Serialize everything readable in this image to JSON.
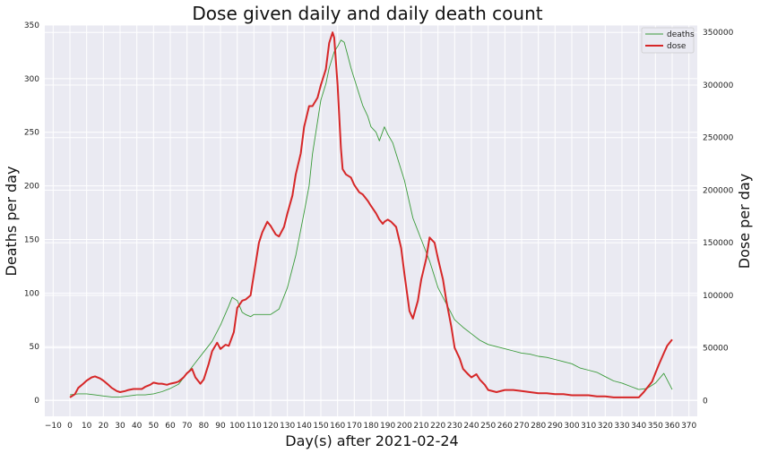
{
  "chart_data": {
    "type": "line",
    "title": "Dose given daily and daily death count",
    "xlabel": "Day(s) after 2021-02-24",
    "ylabel_left": "Deaths per day",
    "ylabel_right": "Dose per day",
    "xlim": [
      -15,
      375
    ],
    "ylim_left": [
      -15,
      350
    ],
    "ylim_right": [
      -15000,
      357000
    ],
    "xticks": [
      -10,
      0,
      10,
      20,
      30,
      40,
      50,
      60,
      70,
      80,
      90,
      100,
      110,
      120,
      130,
      140,
      150,
      160,
      170,
      180,
      190,
      200,
      210,
      220,
      230,
      240,
      250,
      260,
      270,
      280,
      290,
      300,
      310,
      320,
      330,
      340,
      350,
      360,
      370
    ],
    "yticks_left": [
      0,
      50,
      100,
      150,
      200,
      250,
      300,
      350
    ],
    "yticks_right": [
      0,
      50000,
      100000,
      150000,
      200000,
      250000,
      300000,
      350000
    ],
    "grid": true,
    "legend_position": "top-right",
    "colors": {
      "deaths": "#3a9b3a",
      "dose": "#d62728",
      "background": "#eaeaf2",
      "grid": "#ffffff"
    },
    "series": [
      {
        "name": "deaths",
        "axis": "left",
        "x": [
          0,
          5,
          10,
          15,
          20,
          25,
          30,
          35,
          40,
          45,
          50,
          55,
          60,
          65,
          70,
          75,
          80,
          85,
          90,
          95,
          97,
          100,
          103,
          105,
          108,
          110,
          113,
          115,
          118,
          120,
          125,
          130,
          135,
          140,
          143,
          145,
          148,
          150,
          153,
          155,
          158,
          160,
          162,
          164,
          166,
          168,
          170,
          173,
          175,
          178,
          180,
          183,
          185,
          188,
          190,
          193,
          195,
          200,
          205,
          210,
          215,
          220,
          225,
          230,
          235,
          240,
          245,
          250,
          255,
          260,
          265,
          270,
          275,
          280,
          285,
          290,
          295,
          300,
          305,
          310,
          315,
          320,
          325,
          330,
          335,
          340,
          345,
          350,
          355,
          360
        ],
        "values": [
          5,
          6,
          6,
          5,
          4,
          3,
          3,
          4,
          5,
          5,
          6,
          8,
          11,
          15,
          25,
          35,
          45,
          55,
          70,
          88,
          96,
          93,
          82,
          80,
          78,
          80,
          80,
          80,
          80,
          80,
          85,
          105,
          135,
          175,
          200,
          230,
          260,
          280,
          295,
          310,
          325,
          330,
          336,
          334,
          322,
          310,
          300,
          285,
          275,
          265,
          255,
          250,
          242,
          255,
          248,
          240,
          230,
          205,
          170,
          150,
          130,
          105,
          90,
          75,
          68,
          62,
          56,
          52,
          50,
          48,
          46,
          44,
          43,
          41,
          40,
          38,
          36,
          34,
          30,
          28,
          26,
          22,
          18,
          16,
          13,
          10,
          11,
          16,
          25,
          10
        ]
      },
      {
        "name": "dose",
        "axis": "right",
        "x": [
          0,
          3,
          5,
          8,
          10,
          13,
          15,
          18,
          20,
          23,
          25,
          28,
          30,
          33,
          35,
          38,
          40,
          43,
          45,
          48,
          50,
          53,
          55,
          58,
          60,
          63,
          65,
          68,
          70,
          73,
          75,
          78,
          80,
          83,
          85,
          88,
          90,
          93,
          95,
          98,
          100,
          103,
          105,
          108,
          110,
          113,
          115,
          118,
          120,
          123,
          125,
          128,
          130,
          133,
          135,
          138,
          140,
          143,
          145,
          148,
          150,
          153,
          155,
          157,
          158,
          160,
          162,
          163,
          165,
          168,
          170,
          173,
          175,
          178,
          180,
          183,
          185,
          187,
          188,
          190,
          192,
          195,
          198,
          200,
          203,
          205,
          208,
          210,
          213,
          215,
          218,
          220,
          223,
          225,
          228,
          230,
          233,
          235,
          238,
          240,
          243,
          245,
          248,
          250,
          255,
          260,
          265,
          270,
          275,
          280,
          285,
          290,
          295,
          300,
          305,
          310,
          315,
          320,
          325,
          330,
          335,
          340,
          343,
          345,
          348,
          350,
          352,
          355,
          357,
          360
        ],
        "values": [
          3000,
          6000,
          12000,
          16000,
          19000,
          22000,
          23000,
          21000,
          19000,
          15000,
          12000,
          9000,
          8000,
          9000,
          10000,
          11000,
          11000,
          11000,
          13000,
          15000,
          17000,
          16000,
          16000,
          15000,
          16000,
          17000,
          18000,
          22000,
          26000,
          30000,
          22000,
          16000,
          20000,
          35000,
          47000,
          55000,
          49000,
          53000,
          52000,
          65000,
          88000,
          95000,
          96000,
          100000,
          120000,
          150000,
          160000,
          170000,
          166000,
          158000,
          156000,
          165000,
          178000,
          195000,
          215000,
          235000,
          260000,
          280000,
          280000,
          288000,
          300000,
          315000,
          340000,
          350000,
          345000,
          300000,
          240000,
          220000,
          215000,
          212000,
          205000,
          198000,
          196000,
          190000,
          185000,
          178000,
          172000,
          168000,
          170000,
          172000,
          170000,
          165000,
          145000,
          120000,
          85000,
          78000,
          95000,
          115000,
          135000,
          155000,
          150000,
          135000,
          115000,
          95000,
          70000,
          50000,
          40000,
          30000,
          25000,
          22000,
          25000,
          20000,
          15000,
          10000,
          8000,
          10000,
          10000,
          9000,
          8000,
          7000,
          7000,
          6000,
          6000,
          5000,
          5000,
          5000,
          4000,
          4000,
          3000,
          3000,
          3000,
          3000,
          8000,
          12000,
          18000,
          26000,
          34000,
          45000,
          52000,
          58000
        ]
      }
    ]
  }
}
